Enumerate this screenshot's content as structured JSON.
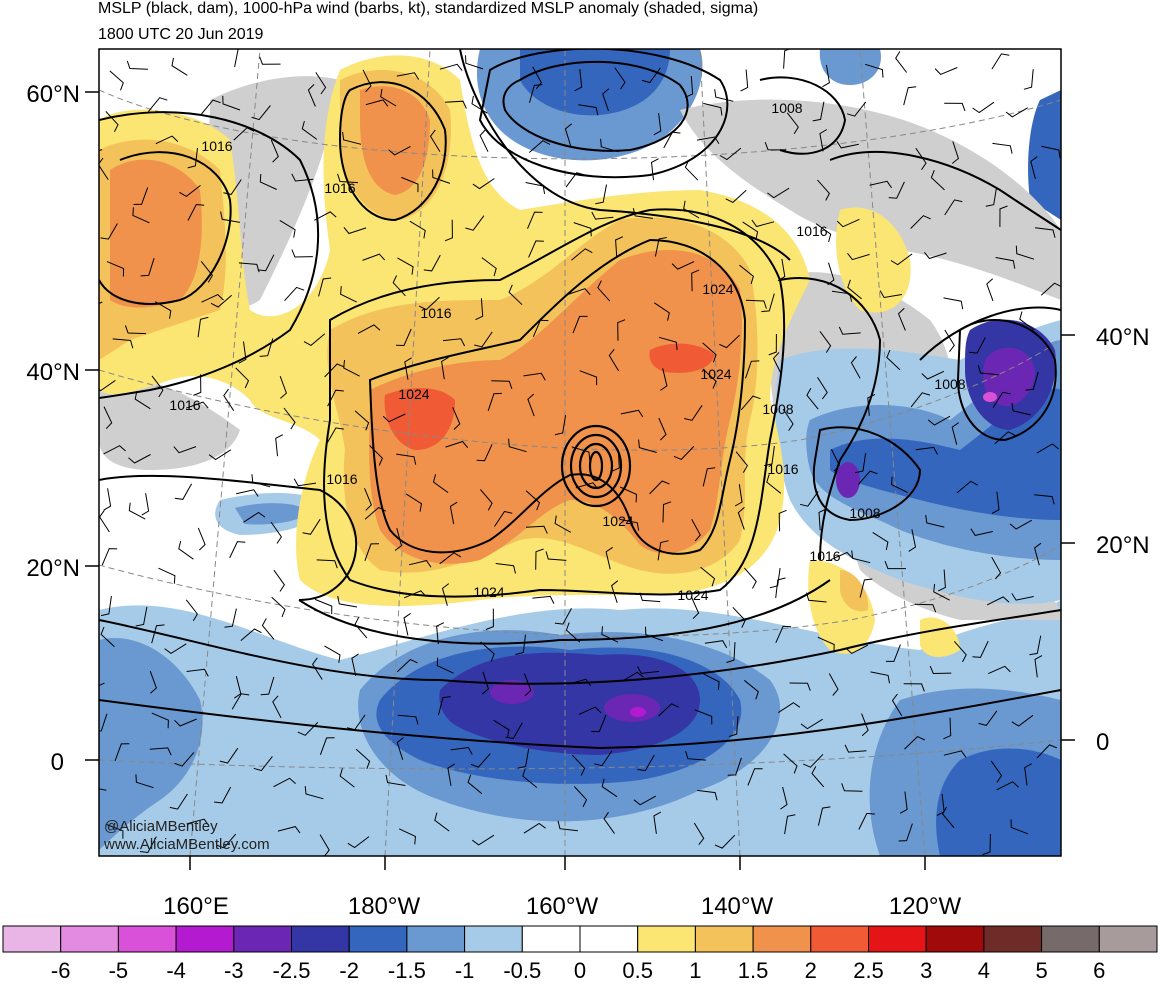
{
  "title_line1": "MSLP (black, dam), 1000-hPa wind (barbs, kt), standardized MSLP anomaly (shaded, sigma)",
  "title_line2": "1800 UTC 20 Jun 2019",
  "lat_labels_left": [
    "60°N",
    "40°N",
    "20°N",
    "0"
  ],
  "lat_labels_right": [
    "40°N",
    "20°N",
    "0"
  ],
  "lon_labels": [
    "160°E",
    "180°W",
    "160°W",
    "140°W",
    "120°W"
  ],
  "contour_labels": [
    "1016",
    "1016",
    "1008",
    "1016",
    "1016",
    "1024",
    "1016",
    "1024",
    "1024",
    "1008",
    "1008",
    "1016",
    "1024",
    "1008",
    "1024",
    "1024",
    "1016",
    "1016"
  ],
  "credit_line1": "@AliciaMBentley",
  "credit_line2": "www.AliciaMBentley.com",
  "colorbar": {
    "colors": [
      "#e9b5e7",
      "#e38be0",
      "#d851d8",
      "#b41bd1",
      "#6b27b4",
      "#3436a5",
      "#3466bd",
      "#6a98d1",
      "#a6cbe8",
      "#ffffff",
      "#ffffff",
      "#fbe573",
      "#f4c25a",
      "#f0924b",
      "#f05a35",
      "#e51416",
      "#a00a0a",
      "#6e2b27",
      "#766b6a",
      "#a89b9b"
    ],
    "labels": [
      "-6",
      "-5",
      "-4",
      "-3",
      "-2.5",
      "-2",
      "-1.5",
      "-1",
      "-0.5",
      "0",
      "0.5",
      "1",
      "1.5",
      "2",
      "2.5",
      "3",
      "4",
      "5",
      "6"
    ]
  }
}
